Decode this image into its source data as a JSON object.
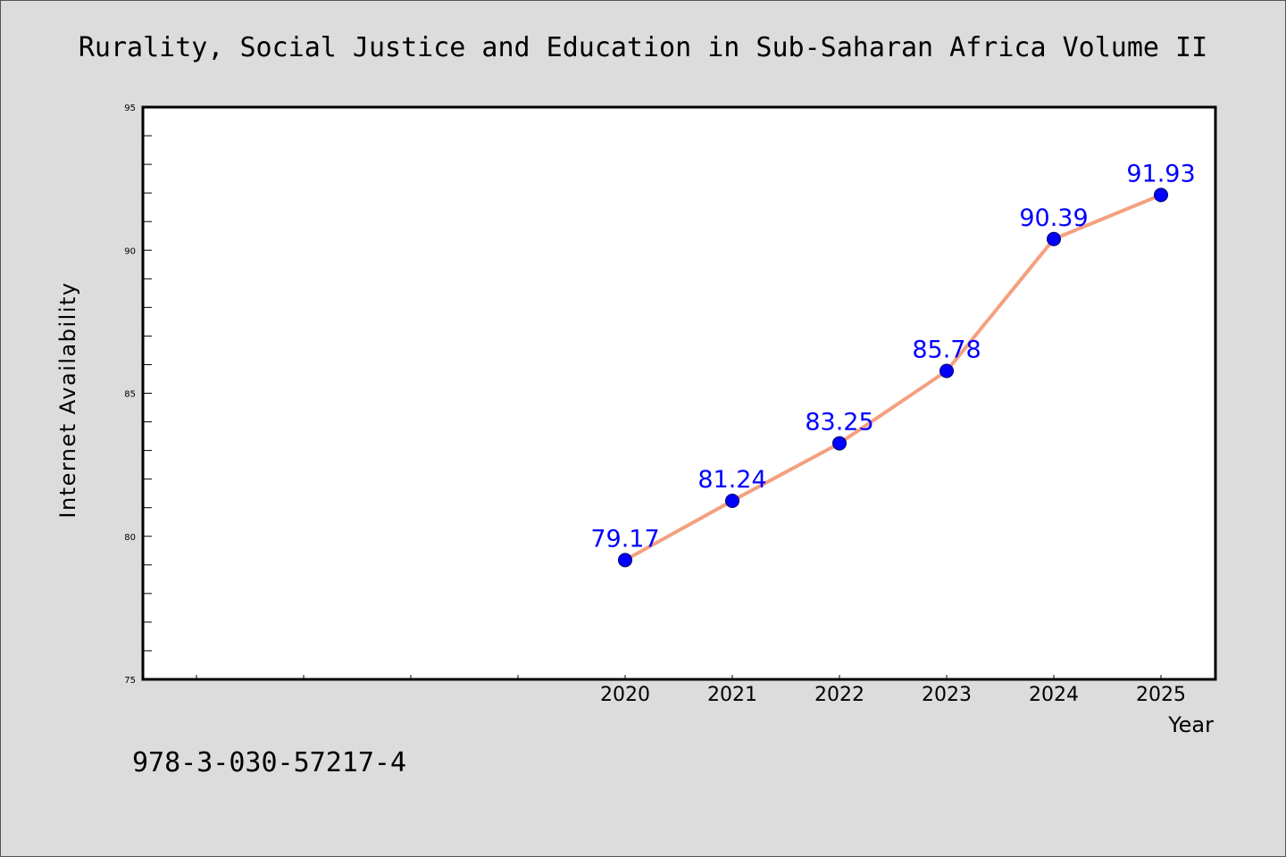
{
  "chart_data": {
    "type": "line",
    "title": "Rurality, Social Justice and Education in Sub-Saharan Africa Volume II",
    "xlabel": "Year",
    "ylabel": "Internet Availability",
    "x": [
      "2020",
      "2021",
      "2022",
      "2023",
      "2024",
      "2025"
    ],
    "series": [
      {
        "values": [
          79.17,
          81.24,
          83.25,
          85.78,
          90.39,
          91.93
        ],
        "line_color": "#f4a07f",
        "marker_color": "#0000ff"
      }
    ],
    "data_labels": [
      "79.17",
      "81.24",
      "83.25",
      "85.78",
      "90.39",
      "91.93"
    ],
    "ylim": [
      75,
      95
    ],
    "yticks": [
      "75",
      "80",
      "85",
      "90",
      "95"
    ],
    "grid": false,
    "legend": "none"
  },
  "footer": {
    "isbn": "978-3-030-57217-4"
  },
  "colors": {
    "background": "#dcdcdc",
    "plot_background": "#ffffff",
    "line": "#f4a07f",
    "marker": "#0000ff",
    "data_label": "#0000ff"
  }
}
